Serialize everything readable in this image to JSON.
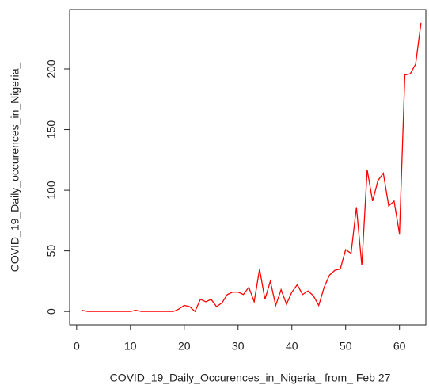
{
  "chart_data": {
    "type": "line",
    "x_label": "COVID_19_Daily_Occurences_in_Nigeria_ from_ Feb 27",
    "y_label": "COVID_19_Daily_occurences_in_Nigeria_",
    "x": [
      1,
      2,
      3,
      4,
      5,
      6,
      7,
      8,
      9,
      10,
      11,
      12,
      13,
      14,
      15,
      16,
      17,
      18,
      19,
      20,
      21,
      22,
      23,
      24,
      25,
      26,
      27,
      28,
      29,
      30,
      31,
      32,
      33,
      34,
      35,
      36,
      37,
      38,
      39,
      40,
      41,
      42,
      43,
      44,
      45,
      46,
      47,
      48,
      49,
      50,
      51,
      52,
      53,
      54,
      55,
      56,
      57,
      58,
      59,
      60,
      61,
      62,
      63,
      64
    ],
    "series": [
      {
        "color": "#ff0000",
        "values": [
          1,
          0,
          0,
          0,
          0,
          0,
          0,
          0,
          0,
          0,
          1,
          0,
          0,
          0,
          0,
          0,
          0,
          0,
          2,
          5,
          4,
          0,
          10,
          8,
          10,
          4,
          7,
          14,
          16,
          16,
          14,
          20,
          8,
          35,
          10,
          25,
          5,
          18,
          6,
          16,
          22,
          14,
          17,
          13,
          5,
          20,
          30,
          34,
          35,
          51,
          48,
          86,
          38,
          117,
          91,
          108,
          114,
          87,
          91,
          64,
          195,
          196,
          204,
          238
        ]
      }
    ],
    "xlim": [
      -1.3,
      64.9
    ],
    "xticks": [
      0,
      10,
      20,
      30,
      40,
      50,
      60
    ],
    "ylim": [
      -11,
      249
    ],
    "yticks": [
      0,
      50,
      100,
      150,
      200
    ]
  }
}
